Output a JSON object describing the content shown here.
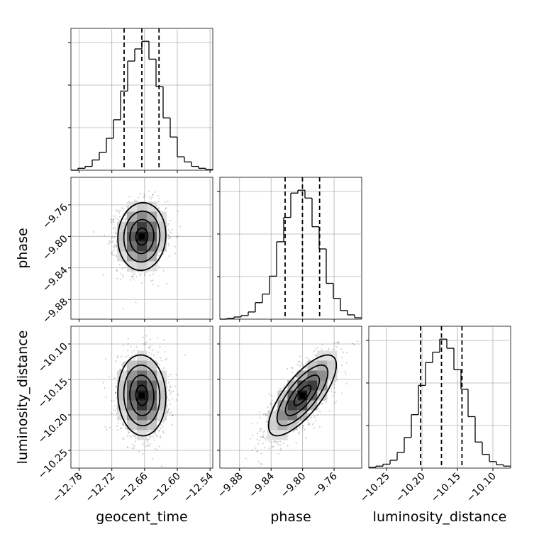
{
  "chart_data": {
    "type": "corner",
    "grid": true,
    "parameters": [
      {
        "name": "geocent_time",
        "range": [
          -12.795,
          -12.535
        ],
        "ticks": [
          "−12.78",
          "−12.72",
          "−12.66",
          "−12.60",
          "−12.54"
        ],
        "tick_values": [
          -12.78,
          -12.72,
          -12.66,
          -12.6,
          -12.54
        ],
        "quantiles": [
          -12.6975,
          -12.665,
          -12.6335
        ],
        "hist_edges": [
          -12.795,
          -12.782,
          -12.769,
          -12.756,
          -12.743,
          -12.73,
          -12.717,
          -12.704,
          -12.691,
          -12.678,
          -12.665,
          -12.652,
          -12.639,
          -12.626,
          -12.613,
          -12.6,
          -12.587,
          -12.574,
          -12.561,
          -12.548,
          -12.535
        ],
        "hist_counts": [
          0,
          3,
          6,
          16,
          28,
          50,
          79,
          124,
          171,
          190,
          202,
          174,
          131,
          82,
          52,
          21,
          13,
          6,
          3,
          1
        ]
      },
      {
        "name": "phase",
        "range": [
          -9.905,
          -9.725
        ],
        "ticks": [
          "−9.88",
          "−9.84",
          "−9.80",
          "−9.76"
        ],
        "tick_values": [
          -9.88,
          -9.84,
          -9.8,
          -9.76
        ],
        "quantiles": [
          -9.8222,
          -9.8002,
          -9.7784
        ],
        "hist_edges": [
          -9.905,
          -9.896,
          -9.887,
          -9.878,
          -9.869,
          -9.86,
          -9.851,
          -9.842,
          -9.833,
          -9.824,
          -9.815,
          -9.806,
          -9.797,
          -9.788,
          -9.779,
          -9.77,
          -9.761,
          -9.752,
          -9.743,
          -9.734,
          -9.725
        ],
        "hist_counts": [
          0,
          1,
          3,
          5,
          10,
          23,
          35,
          60,
          108,
          142,
          176,
          180,
          169,
          129,
          98,
          50,
          29,
          12,
          6,
          2
        ]
      },
      {
        "name": "luminosity_distance",
        "range": [
          -10.275,
          -10.075
        ],
        "ticks": [
          "−10.25",
          "−10.20",
          "−10.15",
          "−10.10"
        ],
        "tick_values": [
          -10.25,
          -10.2,
          -10.15,
          -10.1
        ],
        "quantiles": [
          -10.2019,
          -10.1725,
          -10.1436
        ],
        "hist_edges": [
          -10.275,
          -10.265,
          -10.255,
          -10.245,
          -10.235,
          -10.225,
          -10.215,
          -10.205,
          -10.195,
          -10.185,
          -10.175,
          -10.165,
          -10.155,
          -10.145,
          -10.135,
          -10.125,
          -10.115,
          -10.105,
          -10.095,
          -10.085,
          -10.075
        ],
        "hist_counts": [
          1,
          3,
          6,
          12,
          24,
          47,
          82,
          127,
          162,
          178,
          198,
          184,
          151,
          121,
          79,
          40,
          21,
          10,
          5,
          3
        ]
      }
    ],
    "pairs": [
      {
        "x": "geocent_time",
        "y": "phase",
        "mean": [
          -12.665,
          -9.8002
        ],
        "sd": [
          0.022,
          0.0215
        ],
        "corr": 0.05,
        "n_points": 1500
      },
      {
        "x": "geocent_time",
        "y": "luminosity_distance",
        "mean": [
          -12.665,
          -10.1725
        ],
        "sd": [
          0.022,
          0.0285
        ],
        "corr": -0.05,
        "n_points": 1500
      },
      {
        "x": "phase",
        "y": "luminosity_distance",
        "mean": [
          -9.8002,
          -10.1725
        ],
        "sd": [
          0.0215,
          0.0285
        ],
        "corr": 0.75,
        "n_points": 1500
      }
    ],
    "contour_levels_sigma": [
      0.5,
      1.0,
      1.5,
      2.0
    ]
  }
}
